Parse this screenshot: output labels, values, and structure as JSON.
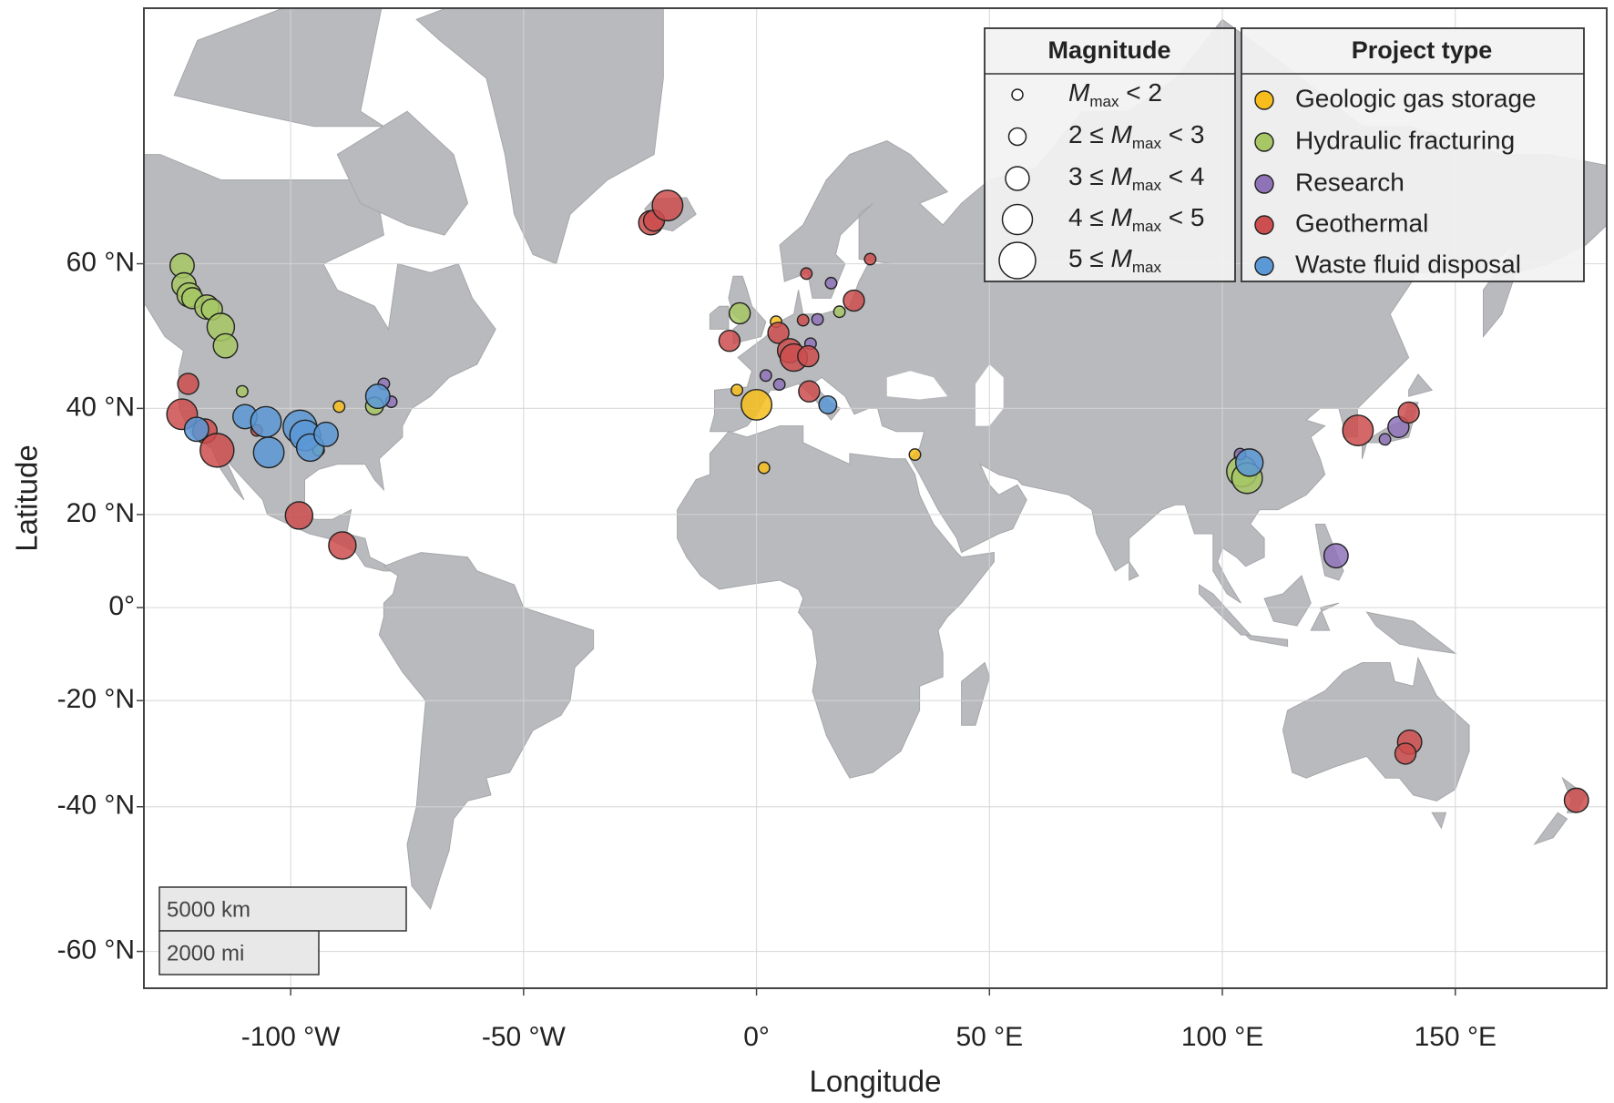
{
  "chart_data": {
    "type": "scatter",
    "projection": "mercator",
    "xlabel": "Longitude",
    "ylabel": "Latitude",
    "xlim": [
      -131.5,
      182.5
    ],
    "ylim": [
      -63.8,
      78.5
    ],
    "grid": true,
    "xticks": [
      {
        "value": -100,
        "label": "-100 °W"
      },
      {
        "value": -50,
        "label": "-50 °W"
      },
      {
        "value": 0,
        "label": "0°"
      },
      {
        "value": 50,
        "label": "50 °E"
      },
      {
        "value": 100,
        "label": "100 °E"
      },
      {
        "value": 150,
        "label": "150 °E"
      }
    ],
    "yticks": [
      {
        "value": -60,
        "label": "-60 °N"
      },
      {
        "value": -40,
        "label": "-40 °N"
      },
      {
        "value": -20,
        "label": "-20 °N"
      },
      {
        "value": 0,
        "label": "0°"
      },
      {
        "value": 20,
        "label": "20 °N"
      },
      {
        "value": 40,
        "label": "40 °N"
      },
      {
        "value": 60,
        "label": "60 °N"
      }
    ],
    "magnitude_legend": {
      "title": "Magnitude",
      "symbol": "M",
      "subscript": "max",
      "items": [
        {
          "post": " < 2"
        },
        {
          "pre": "2 ≤ ",
          "post": " < 3"
        },
        {
          "pre": "3 ≤ ",
          "post": " < 4"
        },
        {
          "pre": "4 ≤ ",
          "post": " < 5"
        },
        {
          "pre": "5 ≤ "
        }
      ]
    },
    "legend_title": "Project type",
    "scale_bar": [
      "5000 km",
      "2000 mi"
    ],
    "series": [
      {
        "name": "Geologic gas storage",
        "color": "#f6bd1c",
        "x": [
          -89.6,
          0,
          -4.2,
          4.2,
          1.6,
          34
        ],
        "values": [
          40.3,
          40.6,
          43,
          53,
          29.3,
          31.8
        ],
        "sizes": [
          1.5,
          4.5,
          1.5,
          1.5,
          1.5,
          1.5
        ]
      },
      {
        "name": "Hydraulic fracturing",
        "color": "#a6c764",
        "x": [
          -123.3,
          -122.9,
          -121.8,
          -121.1,
          -118,
          -116.9,
          -115,
          -114,
          -110.4,
          -82,
          -94,
          -3.6,
          17.8,
          103.8,
          104.2,
          105.3
        ],
        "values": [
          59.8,
          57.6,
          56.4,
          56,
          54.9,
          54.6,
          52.3,
          49.7,
          42.8,
          40.4,
          32.6,
          54.1,
          54.3,
          31.4,
          28.6,
          27.3
        ],
        "sizes": [
          3.5,
          3.5,
          3.5,
          3,
          3.5,
          3,
          4,
          3.5,
          1.5,
          2.5,
          1.5,
          3,
          1.5,
          1.5,
          4.5,
          4.5
        ]
      },
      {
        "name": "Research",
        "color": "#8e73b8",
        "x": [
          -80,
          -78.4,
          2,
          4.9,
          11.6,
          13.1,
          16,
          124.4,
          137.8,
          134.9,
          103.8
        ],
        "values": [
          44,
          41.1,
          45.3,
          43.9,
          50,
          53.3,
          57.8,
          11.3,
          36.8,
          34.6,
          31.9
        ],
        "sizes": [
          1.5,
          1.5,
          1.5,
          1.5,
          1.5,
          1.5,
          1.5,
          3.5,
          3,
          1.5,
          1.5
        ]
      },
      {
        "name": "Geothermal",
        "color": "#cc4e4e",
        "x": [
          -122,
          -123.3,
          -118.4,
          -115.8,
          -107.3,
          -98.2,
          -88.9,
          -22.7,
          -22,
          -19.1,
          -5.8,
          4.7,
          10,
          10.7,
          7.1,
          8,
          11.1,
          11.3,
          20.9,
          24.4,
          129.1,
          140,
          140.2,
          139.3,
          176
        ],
        "values": [
          44,
          39,
          36.1,
          32.6,
          36.2,
          19.8,
          13.5,
          64.2,
          64.4,
          65.8,
          50.4,
          51.5,
          53.2,
          58.9,
          49,
          48,
          48.2,
          42.8,
          55.7,
          60.5,
          36.2,
          39.3,
          -28.3,
          -30.5,
          -38.9
        ],
        "sizes": [
          3,
          4.5,
          3.5,
          5,
          1.5,
          4,
          4,
          3.5,
          3,
          4.5,
          3,
          3,
          1.5,
          1.5,
          3.5,
          4,
          3,
          3,
          3,
          1.5,
          4.5,
          3,
          3.5,
          3,
          3.5
        ]
      },
      {
        "name": "Waste fluid disposal",
        "color": "#5b98d6",
        "x": [
          -120.2,
          -109.8,
          -105.3,
          -104.7,
          -98,
          -96.9,
          -95.8,
          -92.4,
          -81.3,
          15.3,
          105.8
        ],
        "values": [
          36.4,
          38.6,
          37.7,
          32.2,
          36.8,
          35.3,
          33.1,
          35.5,
          42,
          40.6,
          30.3
        ],
        "sizes": [
          3.5,
          3.5,
          4.5,
          4.5,
          5,
          4.5,
          4,
          3.5,
          3.5,
          2.5,
          4
        ]
      }
    ]
  }
}
